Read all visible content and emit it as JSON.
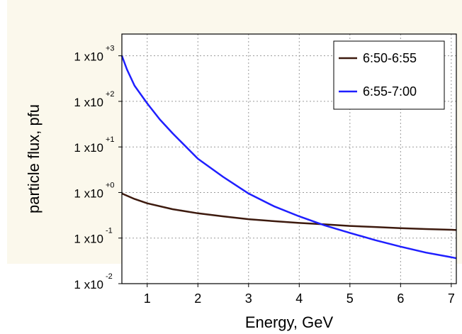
{
  "chart_data": {
    "type": "line",
    "xlabel": "Energy, GeV",
    "ylabel": "particle flux, pfu",
    "xlim": [
      0.5,
      7.1
    ],
    "ylim": [
      0.01,
      3000
    ],
    "yscale": "log",
    "grid": true,
    "legend_position": "top-right",
    "x_ticks": [
      1,
      2,
      3,
      4,
      5,
      6,
      7
    ],
    "x_tick_labels": [
      "1",
      "2",
      "3",
      "4",
      "5",
      "6",
      "7"
    ],
    "y_ticks": [
      {
        "value": 1000,
        "base": "1 x10",
        "exp": "+3"
      },
      {
        "value": 100,
        "base": "1 x10",
        "exp": "+2"
      },
      {
        "value": 10,
        "base": "1 x10",
        "exp": "+1"
      },
      {
        "value": 1,
        "base": "1 x10",
        "exp": "+0"
      },
      {
        "value": 0.1,
        "base": "1 x10",
        "exp": "-1"
      },
      {
        "value": 0.01,
        "base": "1 x10",
        "exp": "-2"
      }
    ],
    "series": [
      {
        "name": "6:50-6:55",
        "color": "#3d1a0e",
        "x": [
          0.5,
          0.75,
          1.0,
          1.5,
          2.0,
          2.5,
          3.0,
          3.5,
          4.0,
          4.5,
          5.0,
          5.5,
          6.0,
          6.5,
          7.0,
          7.1
        ],
        "y": [
          0.95,
          0.72,
          0.58,
          0.43,
          0.35,
          0.3,
          0.26,
          0.235,
          0.215,
          0.2,
          0.185,
          0.175,
          0.165,
          0.158,
          0.152,
          0.15
        ]
      },
      {
        "name": "6:55-7:00",
        "color": "#1f1fff",
        "x": [
          0.5,
          0.6,
          0.75,
          1.0,
          1.25,
          1.5,
          2.0,
          2.5,
          3.0,
          3.5,
          4.0,
          4.5,
          5.0,
          5.5,
          6.0,
          6.5,
          7.0,
          7.1
        ],
        "y": [
          1000,
          500,
          220,
          90,
          40,
          20,
          5.5,
          2.2,
          0.95,
          0.5,
          0.3,
          0.19,
          0.13,
          0.09,
          0.065,
          0.048,
          0.038,
          0.036
        ]
      }
    ]
  }
}
